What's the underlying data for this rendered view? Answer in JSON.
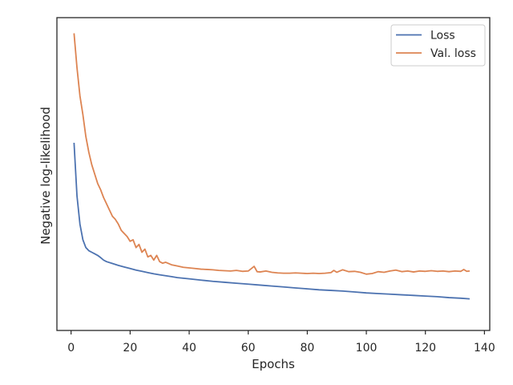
{
  "chart_data": {
    "type": "line",
    "title": "",
    "xlabel": "Epochs",
    "ylabel": "Negative log-likelihood",
    "xlim": [
      -4.8,
      141.8
    ],
    "ylim": [
      0.3,
      10.3
    ],
    "xticks": [
      0,
      20,
      40,
      60,
      80,
      100,
      120,
      140
    ],
    "yticks": [],
    "grid": false,
    "legend_position": "top-right",
    "series": [
      {
        "name": "Loss",
        "color": "#4c72b0",
        "points": [
          [
            1,
            6.3
          ],
          [
            2,
            4.6
          ],
          [
            3,
            3.7
          ],
          [
            4,
            3.2
          ],
          [
            5,
            2.95
          ],
          [
            6,
            2.85
          ],
          [
            7,
            2.8
          ],
          [
            8,
            2.75
          ],
          [
            9,
            2.7
          ],
          [
            10,
            2.63
          ],
          [
            11,
            2.55
          ],
          [
            12,
            2.5
          ],
          [
            14,
            2.44
          ],
          [
            16,
            2.38
          ],
          [
            18,
            2.33
          ],
          [
            20,
            2.28
          ],
          [
            22,
            2.23
          ],
          [
            24,
            2.19
          ],
          [
            26,
            2.15
          ],
          [
            28,
            2.11
          ],
          [
            30,
            2.08
          ],
          [
            32,
            2.05
          ],
          [
            34,
            2.02
          ],
          [
            36,
            1.99
          ],
          [
            38,
            1.97
          ],
          [
            40,
            1.95
          ],
          [
            44,
            1.91
          ],
          [
            48,
            1.87
          ],
          [
            52,
            1.84
          ],
          [
            56,
            1.81
          ],
          [
            60,
            1.78
          ],
          [
            64,
            1.75
          ],
          [
            68,
            1.72
          ],
          [
            72,
            1.69
          ],
          [
            76,
            1.66
          ],
          [
            80,
            1.63
          ],
          [
            84,
            1.6
          ],
          [
            88,
            1.58
          ],
          [
            92,
            1.56
          ],
          [
            96,
            1.53
          ],
          [
            100,
            1.5
          ],
          [
            104,
            1.48
          ],
          [
            108,
            1.46
          ],
          [
            112,
            1.44
          ],
          [
            116,
            1.42
          ],
          [
            120,
            1.4
          ],
          [
            124,
            1.38
          ],
          [
            128,
            1.35
          ],
          [
            132,
            1.33
          ],
          [
            135,
            1.31
          ]
        ]
      },
      {
        "name": "Val. loss",
        "color": "#dd8452",
        "points": [
          [
            1,
            9.8
          ],
          [
            2,
            8.7
          ],
          [
            3,
            7.8
          ],
          [
            4,
            7.2
          ],
          [
            5,
            6.5
          ],
          [
            6,
            6.0
          ],
          [
            7,
            5.6
          ],
          [
            8,
            5.3
          ],
          [
            9,
            5.0
          ],
          [
            10,
            4.8
          ],
          [
            11,
            4.55
          ],
          [
            12,
            4.35
          ],
          [
            13,
            4.15
          ],
          [
            14,
            3.95
          ],
          [
            15,
            3.85
          ],
          [
            16,
            3.7
          ],
          [
            17,
            3.5
          ],
          [
            18,
            3.4
          ],
          [
            19,
            3.3
          ],
          [
            20,
            3.15
          ],
          [
            21,
            3.2
          ],
          [
            22,
            2.95
          ],
          [
            23,
            3.05
          ],
          [
            24,
            2.8
          ],
          [
            25,
            2.9
          ],
          [
            26,
            2.65
          ],
          [
            27,
            2.7
          ],
          [
            28,
            2.55
          ],
          [
            29,
            2.7
          ],
          [
            30,
            2.5
          ],
          [
            31,
            2.45
          ],
          [
            32,
            2.48
          ],
          [
            34,
            2.4
          ],
          [
            36,
            2.36
          ],
          [
            38,
            2.32
          ],
          [
            40,
            2.3
          ],
          [
            42,
            2.28
          ],
          [
            44,
            2.26
          ],
          [
            46,
            2.25
          ],
          [
            48,
            2.24
          ],
          [
            50,
            2.22
          ],
          [
            52,
            2.21
          ],
          [
            54,
            2.2
          ],
          [
            56,
            2.22
          ],
          [
            58,
            2.19
          ],
          [
            60,
            2.2
          ],
          [
            62,
            2.35
          ],
          [
            63,
            2.18
          ],
          [
            64,
            2.17
          ],
          [
            66,
            2.2
          ],
          [
            68,
            2.16
          ],
          [
            70,
            2.14
          ],
          [
            72,
            2.13
          ],
          [
            74,
            2.13
          ],
          [
            76,
            2.14
          ],
          [
            78,
            2.13
          ],
          [
            80,
            2.12
          ],
          [
            82,
            2.13
          ],
          [
            84,
            2.12
          ],
          [
            86,
            2.13
          ],
          [
            88,
            2.15
          ],
          [
            89,
            2.22
          ],
          [
            90,
            2.16
          ],
          [
            92,
            2.24
          ],
          [
            94,
            2.18
          ],
          [
            96,
            2.19
          ],
          [
            98,
            2.16
          ],
          [
            100,
            2.1
          ],
          [
            102,
            2.12
          ],
          [
            104,
            2.18
          ],
          [
            106,
            2.16
          ],
          [
            108,
            2.2
          ],
          [
            110,
            2.23
          ],
          [
            112,
            2.18
          ],
          [
            114,
            2.2
          ],
          [
            116,
            2.17
          ],
          [
            118,
            2.2
          ],
          [
            120,
            2.19
          ],
          [
            122,
            2.21
          ],
          [
            124,
            2.19
          ],
          [
            126,
            2.2
          ],
          [
            128,
            2.18
          ],
          [
            130,
            2.2
          ],
          [
            132,
            2.19
          ],
          [
            133,
            2.25
          ],
          [
            134,
            2.19
          ],
          [
            135,
            2.2
          ]
        ]
      }
    ]
  }
}
